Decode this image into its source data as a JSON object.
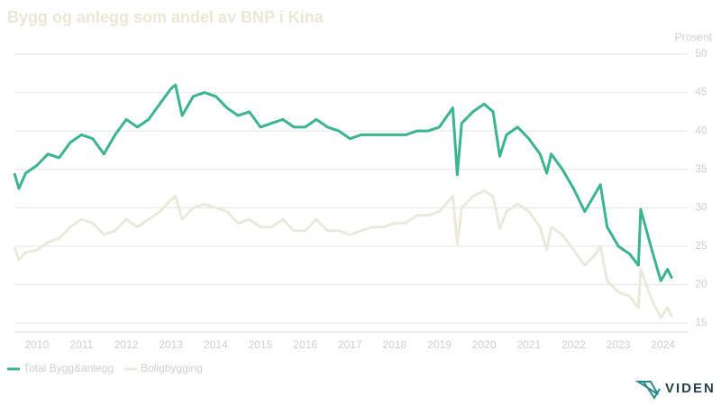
{
  "chart_data": {
    "type": "line",
    "title": "Bygg og anlegg som andel av BNP i Kina",
    "y_label": "Prosent",
    "logo": "VIDEN",
    "x": [
      2010.0,
      2010.1,
      2010.25,
      2010.5,
      2010.75,
      2011.0,
      2011.25,
      2011.5,
      2011.75,
      2012.0,
      2012.25,
      2012.5,
      2012.75,
      2013.0,
      2013.25,
      2013.5,
      2013.6,
      2013.75,
      2014.0,
      2014.25,
      2014.5,
      2014.75,
      2015.0,
      2015.25,
      2015.5,
      2015.75,
      2016.0,
      2016.25,
      2016.5,
      2016.75,
      2017.0,
      2017.25,
      2017.5,
      2017.75,
      2018.0,
      2018.25,
      2018.5,
      2018.75,
      2019.0,
      2019.25,
      2019.5,
      2019.8,
      2019.9,
      2020.0,
      2020.25,
      2020.5,
      2020.7,
      2020.85,
      2021.0,
      2021.25,
      2021.5,
      2021.75,
      2021.9,
      2022.0,
      2022.25,
      2022.5,
      2022.75,
      2023.0,
      2023.1,
      2023.25,
      2023.5,
      2023.75,
      2023.95,
      2024.0,
      2024.25,
      2024.45,
      2024.6,
      2024.7
    ],
    "series": [
      {
        "name": "Total Bygg&anlegg",
        "color": "#3bb48f",
        "values": [
          34.5,
          32.5,
          34.5,
          35.5,
          37,
          36.5,
          38.5,
          39.5,
          39,
          37,
          39.5,
          41.5,
          40.5,
          41.5,
          43.5,
          45.5,
          46,
          42,
          44.5,
          45,
          44.5,
          43,
          42,
          42.5,
          40.5,
          41,
          41.5,
          40.5,
          40.5,
          41.5,
          40.5,
          40,
          39,
          39.5,
          39.5,
          39.5,
          39.5,
          39.5,
          40,
          40,
          40.5,
          43,
          34.3,
          41,
          42.5,
          43.5,
          42.5,
          36.7,
          39.5,
          40.5,
          39,
          37,
          34.5,
          37,
          35,
          32.5,
          29.5,
          32,
          33,
          27.5,
          25,
          24,
          22.5,
          29.8,
          24.5,
          20.5,
          22,
          20.8
        ]
      },
      {
        "name": "Boligbygging",
        "color": "#ece9dc",
        "values": [
          24.8,
          23.2,
          24.2,
          24.5,
          25.5,
          26,
          27.5,
          28.5,
          28,
          26.5,
          27,
          28.5,
          27.5,
          28.5,
          29.5,
          31,
          31.5,
          28.5,
          30,
          30.5,
          30,
          29.5,
          28,
          28.5,
          27.5,
          27.5,
          28.5,
          27,
          27,
          28.5,
          27,
          27,
          26.5,
          27,
          27.5,
          27.5,
          28,
          28,
          29,
          29,
          29.5,
          31.5,
          25.3,
          30,
          31.5,
          32.2,
          31.5,
          27.3,
          29.5,
          30.5,
          29.5,
          27.5,
          24.5,
          27.5,
          26.5,
          24.5,
          22.5,
          24,
          25,
          20.5,
          19,
          18.5,
          17,
          22,
          18,
          15.7,
          17,
          15.8
        ]
      }
    ],
    "xlim": [
      2010,
      2025.05
    ],
    "xticks": [
      {
        "value": 2010.5,
        "label": "2010"
      },
      {
        "value": 2011.5,
        "label": "2011"
      },
      {
        "value": 2012.5,
        "label": "2012"
      },
      {
        "value": 2013.5,
        "label": "2013"
      },
      {
        "value": 2014.5,
        "label": "2014"
      },
      {
        "value": 2015.5,
        "label": "2015"
      },
      {
        "value": 2016.5,
        "label": "2016"
      },
      {
        "value": 2017.5,
        "label": "2017"
      },
      {
        "value": 2018.5,
        "label": "2018"
      },
      {
        "value": 2019.5,
        "label": "2019"
      },
      {
        "value": 2020.5,
        "label": "2020"
      },
      {
        "value": 2021.5,
        "label": "2021"
      },
      {
        "value": 2022.5,
        "label": "2022"
      },
      {
        "value": 2023.5,
        "label": "2023"
      },
      {
        "value": 2024.5,
        "label": "2024"
      }
    ],
    "ylim": [
      15,
      50
    ],
    "yticks": [
      15,
      20,
      25,
      30,
      35,
      40,
      45,
      50
    ],
    "grid": true,
    "legend": "bottom-left"
  }
}
